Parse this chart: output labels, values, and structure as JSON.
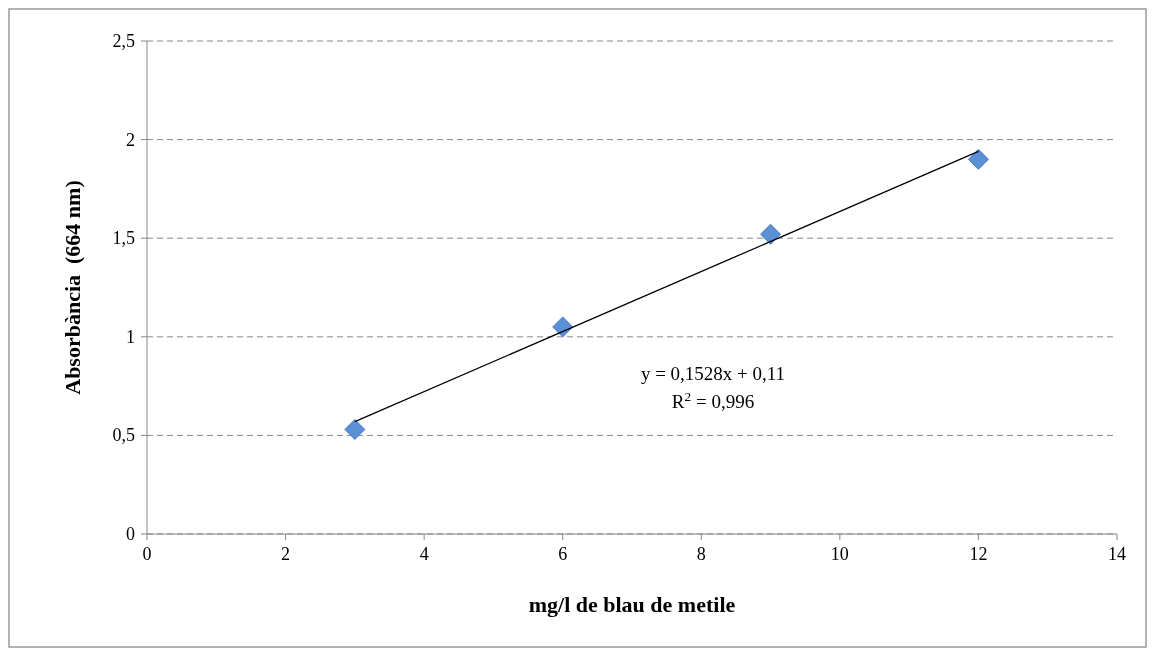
{
  "chart_data": {
    "type": "scatter",
    "xlabel": "mg/l de blau de metile",
    "ylabel": "Absorbància  (664 nm)",
    "series": [
      {
        "color": "#5b8fd6",
        "x": [
          3,
          6,
          9,
          12
        ],
        "values": [
          0.53,
          1.05,
          1.52,
          1.9
        ]
      },
      {
        "type": "line",
        "color": "#000000",
        "marker": "none",
        "x": [
          3,
          12
        ],
        "values": [
          0.57,
          1.94
        ]
      }
    ],
    "xlim": [
      0,
      14
    ],
    "xticks": [
      0,
      2,
      4,
      6,
      8,
      10,
      12,
      14
    ],
    "ylim": [
      0,
      2.5
    ],
    "yticks": [
      0,
      {
        "value": 0.5,
        "label": "0,5"
      },
      1,
      {
        "value": 1.5,
        "label": "1,5"
      },
      2,
      {
        "value": 2.5,
        "label": "2,5"
      }
    ],
    "grid": "y",
    "marker": "diamond",
    "annotations": [
      "y = 0,1528x + 0,11",
      "R$^{2}$ = 0,996"
    ]
  }
}
